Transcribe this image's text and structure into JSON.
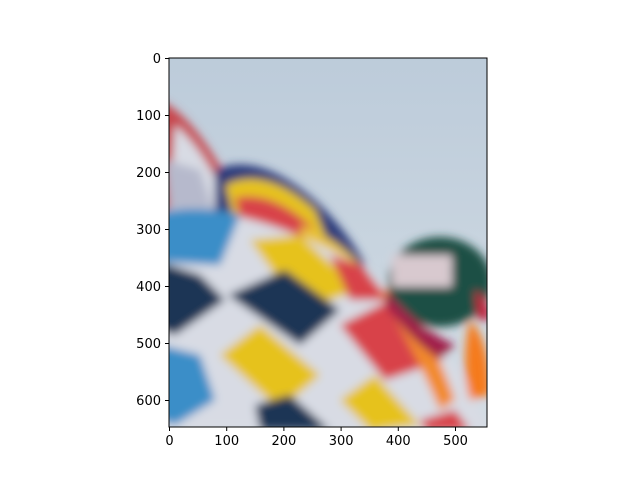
{
  "figure": {
    "image_subject": "blurred-hot-air-balloons",
    "x_ticks": [
      {
        "value": 0,
        "label": "0"
      },
      {
        "value": 100,
        "label": "100"
      },
      {
        "value": 200,
        "label": "200"
      },
      {
        "value": 300,
        "label": "300"
      },
      {
        "value": 400,
        "label": "400"
      },
      {
        "value": 500,
        "label": "500"
      }
    ],
    "y_ticks": [
      {
        "value": 0,
        "label": "0"
      },
      {
        "value": 100,
        "label": "100"
      },
      {
        "value": 200,
        "label": "200"
      },
      {
        "value": 300,
        "label": "300"
      },
      {
        "value": 400,
        "label": "400"
      },
      {
        "value": 500,
        "label": "500"
      },
      {
        "value": 600,
        "label": "600"
      }
    ],
    "x_range": [
      0,
      556
    ],
    "y_range": [
      0,
      647
    ],
    "y_axis_inverted": true,
    "colors": {
      "sky": "#c3d1de",
      "balloon_yellow": "#e6c21f",
      "balloon_navy": "#1d3554",
      "balloon_red": "#d8424a",
      "balloon_white": "#d8dbe4",
      "balloon_blue": "#3b8ec8",
      "balloon_green": "#1c4f44",
      "balloon_orange": "#f28a2a",
      "balloon_magenta": "#a01c48"
    }
  }
}
